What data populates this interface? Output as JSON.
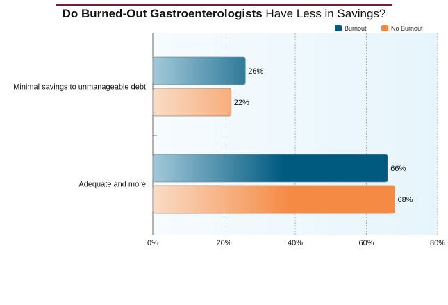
{
  "chart_data": {
    "type": "bar",
    "orientation": "horizontal",
    "title_bold": "Do Burned-Out Gastroenterologists",
    "title_rest": " Have Less in Savings?",
    "categories": [
      "Minimal savings to unmanageable debt",
      "Adequate and more"
    ],
    "series": [
      {
        "name": "Burnout",
        "values": [
          26,
          66
        ],
        "color": "#005a80"
      },
      {
        "name": "No Burnout",
        "values": [
          22,
          68
        ],
        "color": "#f58a44"
      }
    ],
    "data_labels": [
      [
        "26%",
        "66%"
      ],
      [
        "22%",
        "68%"
      ]
    ],
    "xlim": [
      0,
      80
    ],
    "xticks": [
      0,
      20,
      40,
      60,
      80
    ],
    "xtick_labels": [
      "0%",
      "20%",
      "40%",
      "60%",
      "80%"
    ],
    "grid": true,
    "legend_position": "top-right",
    "plot_background": "#eaf6fc",
    "title_rule_color": "#7a1c2c"
  }
}
